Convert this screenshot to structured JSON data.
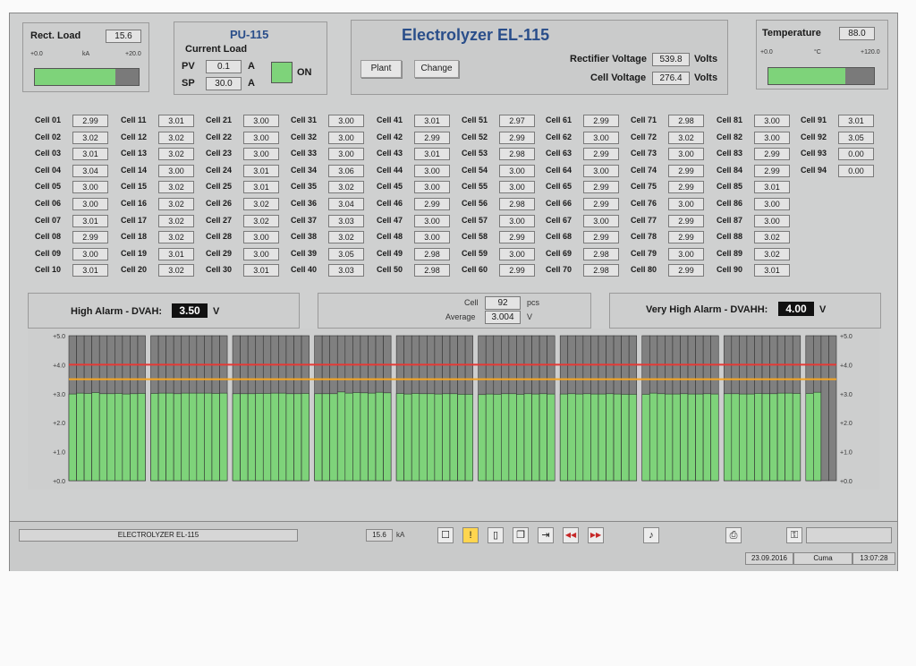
{
  "rect_load": {
    "label": "Rect. Load",
    "value": "15.6",
    "scale_min": "+0.0",
    "unit": "kA",
    "scale_max": "+20.0",
    "fill_fraction": 0.78
  },
  "pu": {
    "title": "PU-115",
    "subtitle": "Current Load",
    "pv_label": "PV",
    "pv_value": "0.1",
    "pv_unit": "A",
    "sp_label": "SP",
    "sp_value": "30.0",
    "sp_unit": "A",
    "status": "ON"
  },
  "header": {
    "title": "Electrolyzer EL-115",
    "plant_button": "Plant",
    "change_button": "Change",
    "rectifier_voltage_label": "Rectifier Voltage",
    "rectifier_voltage_value": "539.8",
    "rectifier_voltage_unit": "Volts",
    "cell_voltage_label": "Cell Voltage",
    "cell_voltage_value": "276.4",
    "cell_voltage_unit": "Volts"
  },
  "temperature": {
    "label": "Temperature",
    "value": "88.0",
    "scale_min": "+0.0",
    "unit": "°C",
    "scale_max": "+120.0",
    "fill_fraction": 0.73
  },
  "cells": [
    [
      "Cell 01",
      "2.99"
    ],
    [
      "Cell 02",
      "3.02"
    ],
    [
      "Cell 03",
      "3.01"
    ],
    [
      "Cell 04",
      "3.04"
    ],
    [
      "Cell 05",
      "3.00"
    ],
    [
      "Cell 06",
      "3.00"
    ],
    [
      "Cell 07",
      "3.01"
    ],
    [
      "Cell 08",
      "2.99"
    ],
    [
      "Cell 09",
      "3.00"
    ],
    [
      "Cell 10",
      "3.01"
    ],
    [
      "Cell 11",
      "3.01"
    ],
    [
      "Cell 12",
      "3.02"
    ],
    [
      "Cell 13",
      "3.02"
    ],
    [
      "Cell 14",
      "3.00"
    ],
    [
      "Cell 15",
      "3.02"
    ],
    [
      "Cell 16",
      "3.02"
    ],
    [
      "Cell 17",
      "3.02"
    ],
    [
      "Cell 18",
      "3.02"
    ],
    [
      "Cell 19",
      "3.01"
    ],
    [
      "Cell 20",
      "3.02"
    ],
    [
      "Cell 21",
      "3.00"
    ],
    [
      "Cell 22",
      "3.00"
    ],
    [
      "Cell 23",
      "3.00"
    ],
    [
      "Cell 24",
      "3.01"
    ],
    [
      "Cell 25",
      "3.01"
    ],
    [
      "Cell 26",
      "3.02"
    ],
    [
      "Cell 27",
      "3.02"
    ],
    [
      "Cell 28",
      "3.00"
    ],
    [
      "Cell 29",
      "3.00"
    ],
    [
      "Cell 30",
      "3.01"
    ],
    [
      "Cell 31",
      "3.00"
    ],
    [
      "Cell 32",
      "3.00"
    ],
    [
      "Cell 33",
      "3.00"
    ],
    [
      "Cell 34",
      "3.06"
    ],
    [
      "Cell 35",
      "3.02"
    ],
    [
      "Cell 36",
      "3.04"
    ],
    [
      "Cell 37",
      "3.03"
    ],
    [
      "Cell 38",
      "3.02"
    ],
    [
      "Cell 39",
      "3.05"
    ],
    [
      "Cell 40",
      "3.03"
    ],
    [
      "Cell 41",
      "3.01"
    ],
    [
      "Cell 42",
      "2.99"
    ],
    [
      "Cell 43",
      "3.01"
    ],
    [
      "Cell 44",
      "3.00"
    ],
    [
      "Cell 45",
      "3.00"
    ],
    [
      "Cell 46",
      "2.99"
    ],
    [
      "Cell 47",
      "3.00"
    ],
    [
      "Cell 48",
      "3.00"
    ],
    [
      "Cell 49",
      "2.98"
    ],
    [
      "Cell 50",
      "2.98"
    ],
    [
      "Cell 51",
      "2.97"
    ],
    [
      "Cell 52",
      "2.99"
    ],
    [
      "Cell 53",
      "2.98"
    ],
    [
      "Cell 54",
      "3.00"
    ],
    [
      "Cell 55",
      "3.00"
    ],
    [
      "Cell 56",
      "2.98"
    ],
    [
      "Cell 57",
      "3.00"
    ],
    [
      "Cell 58",
      "2.99"
    ],
    [
      "Cell 59",
      "3.00"
    ],
    [
      "Cell 60",
      "2.99"
    ],
    [
      "Cell 61",
      "2.99"
    ],
    [
      "Cell 62",
      "3.00"
    ],
    [
      "Cell 63",
      "2.99"
    ],
    [
      "Cell 64",
      "3.00"
    ],
    [
      "Cell 65",
      "2.99"
    ],
    [
      "Cell 66",
      "2.99"
    ],
    [
      "Cell 67",
      "3.00"
    ],
    [
      "Cell 68",
      "2.99"
    ],
    [
      "Cell 69",
      "2.98"
    ],
    [
      "Cell 70",
      "2.98"
    ],
    [
      "Cell 71",
      "2.98"
    ],
    [
      "Cell 72",
      "3.02"
    ],
    [
      "Cell 73",
      "3.00"
    ],
    [
      "Cell 74",
      "2.99"
    ],
    [
      "Cell 75",
      "2.99"
    ],
    [
      "Cell 76",
      "3.00"
    ],
    [
      "Cell 77",
      "2.99"
    ],
    [
      "Cell 78",
      "2.99"
    ],
    [
      "Cell 79",
      "3.00"
    ],
    [
      "Cell 80",
      "2.99"
    ],
    [
      "Cell 81",
      "3.00"
    ],
    [
      "Cell 82",
      "3.00"
    ],
    [
      "Cell 83",
      "2.99"
    ],
    [
      "Cell 84",
      "2.99"
    ],
    [
      "Cell 85",
      "3.01"
    ],
    [
      "Cell 86",
      "3.00"
    ],
    [
      "Cell 87",
      "3.00"
    ],
    [
      "Cell 88",
      "3.02"
    ],
    [
      "Cell 89",
      "3.02"
    ],
    [
      "Cell 90",
      "3.01"
    ],
    [
      "Cell 91",
      "3.01"
    ],
    [
      "Cell 92",
      "3.05"
    ],
    [
      "Cell 93",
      "0.00"
    ],
    [
      "Cell 94",
      "0.00"
    ]
  ],
  "alarms": {
    "high_label": "High Alarm - DVAH:",
    "high_value": "3.50",
    "high_unit": "V",
    "very_high_label": "Very High Alarm - DVAHH:",
    "very_high_value": "4.00",
    "very_high_unit": "V",
    "cell_label": "Cell",
    "cell_count": "92",
    "cell_unit": "pcs",
    "average_label": "Average",
    "average_value": "3.004",
    "average_unit": "V"
  },
  "chart_data": {
    "type": "bar",
    "ylim": [
      0,
      5
    ],
    "yticks": [
      "+0.0",
      "+1.0",
      "+2.0",
      "+3.0",
      "+4.0",
      "+5.0"
    ],
    "values": [
      2.99,
      3.02,
      3.01,
      3.04,
      3.0,
      3.0,
      3.01,
      2.99,
      3.0,
      3.01,
      3.01,
      3.02,
      3.02,
      3.0,
      3.02,
      3.02,
      3.02,
      3.02,
      3.01,
      3.02,
      3.0,
      3.0,
      3.0,
      3.01,
      3.01,
      3.02,
      3.02,
      3.0,
      3.0,
      3.01,
      3.0,
      3.0,
      3.0,
      3.06,
      3.02,
      3.04,
      3.03,
      3.02,
      3.05,
      3.03,
      3.01,
      2.99,
      3.01,
      3.0,
      3.0,
      2.99,
      3.0,
      3.0,
      2.98,
      2.98,
      2.97,
      2.99,
      2.98,
      3.0,
      3.0,
      2.98,
      3.0,
      2.99,
      3.0,
      2.99,
      2.99,
      3.0,
      2.99,
      3.0,
      2.99,
      2.99,
      3.0,
      2.99,
      2.98,
      2.98,
      2.98,
      3.02,
      3.0,
      2.99,
      2.99,
      3.0,
      2.99,
      2.99,
      3.0,
      2.99,
      3.0,
      3.0,
      2.99,
      2.99,
      3.01,
      3.0,
      3.0,
      3.02,
      3.02,
      3.01,
      3.01,
      3.05,
      0.0,
      0.0
    ],
    "high_alarm": 3.5,
    "very_high_alarm": 4.0,
    "colors": {
      "bar": "#7ed37a",
      "background": "#808080",
      "high": "#f5a623",
      "very_high": "#e53935"
    }
  },
  "statusbar": {
    "title": "ELECTROLYZER EL-115",
    "load_value": "15.6",
    "load_unit": "kA",
    "date": "23.09.2016",
    "day": "Cuma",
    "time": "13:07:28"
  },
  "toolbar_icons": [
    "report-icon",
    "alarm-icon",
    "document-icon",
    "pages-icon",
    "export-icon",
    "previous-icon",
    "next-icon",
    "sound-icon",
    "printer-icon",
    "key-icon"
  ]
}
